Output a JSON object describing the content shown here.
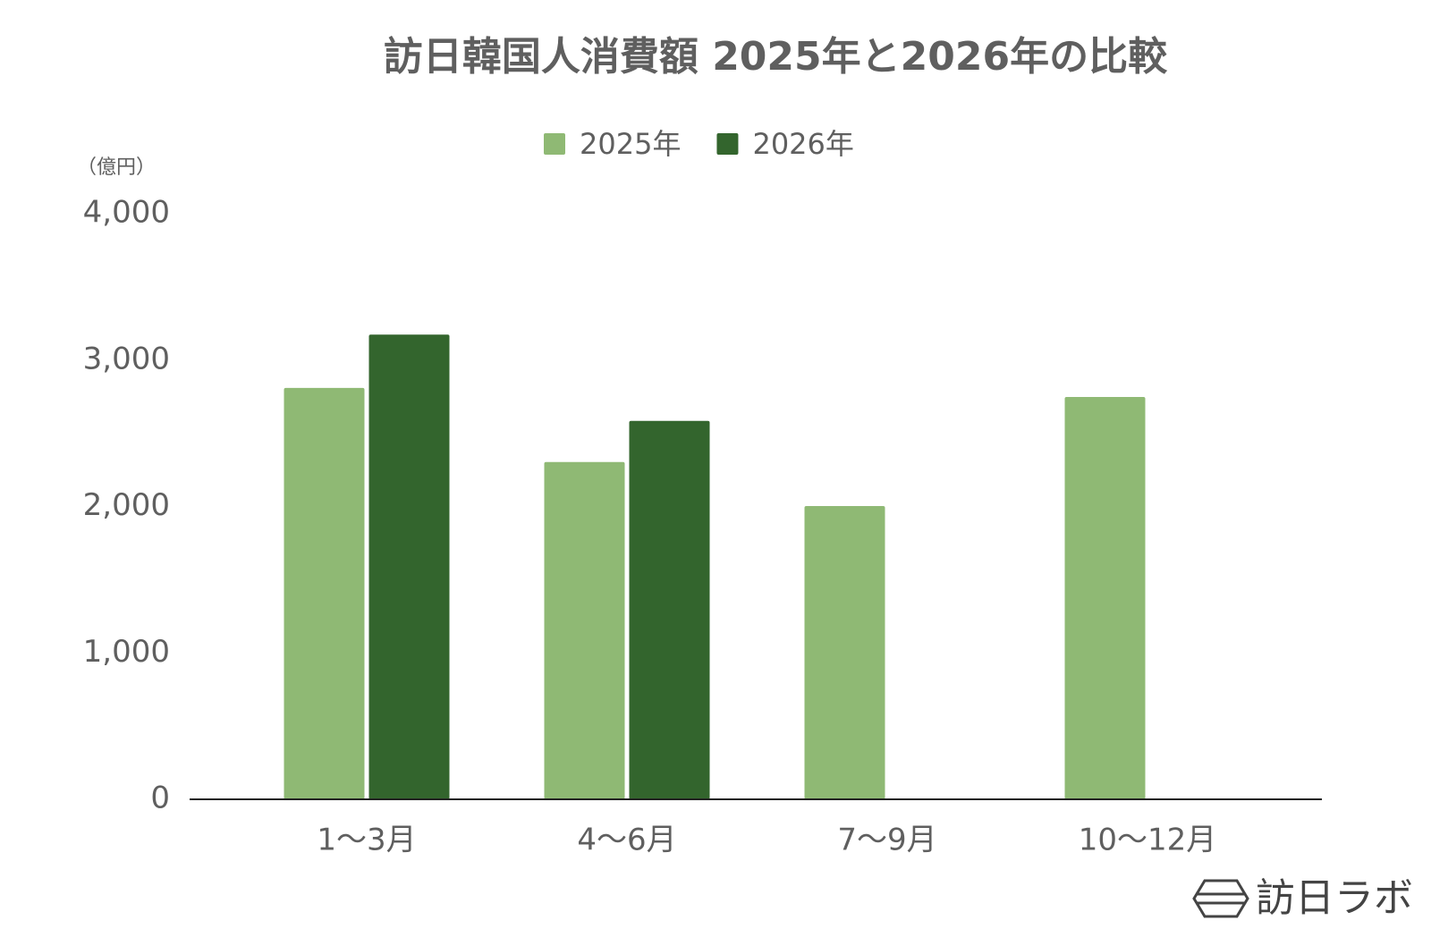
{
  "chart_data": {
    "type": "bar",
    "title": "訪日韓国人消費額 2025年と2026年の比較",
    "y_axis_label": "（億円）",
    "categories": [
      "1〜3月",
      "4〜6月",
      "7〜9月",
      "10〜12月"
    ],
    "series": [
      {
        "name": "2025年",
        "color": "#8fb974",
        "values": [
          2810,
          2304,
          2003,
          2748
        ]
      },
      {
        "name": "2026年",
        "color": "#33652d",
        "values": [
          3174,
          2585,
          null,
          null
        ]
      }
    ],
    "ylim": [
      0,
      4000
    ],
    "yticks": [
      0,
      {
        "value": 1000,
        "label": "1,000"
      },
      {
        "value": 2000,
        "label": "2,000"
      },
      {
        "value": 3000,
        "label": "3,000"
      },
      {
        "value": 4000,
        "label": "4,000"
      }
    ],
    "grid": false,
    "legend_position": "top",
    "watermark": "訪日ラボ"
  }
}
